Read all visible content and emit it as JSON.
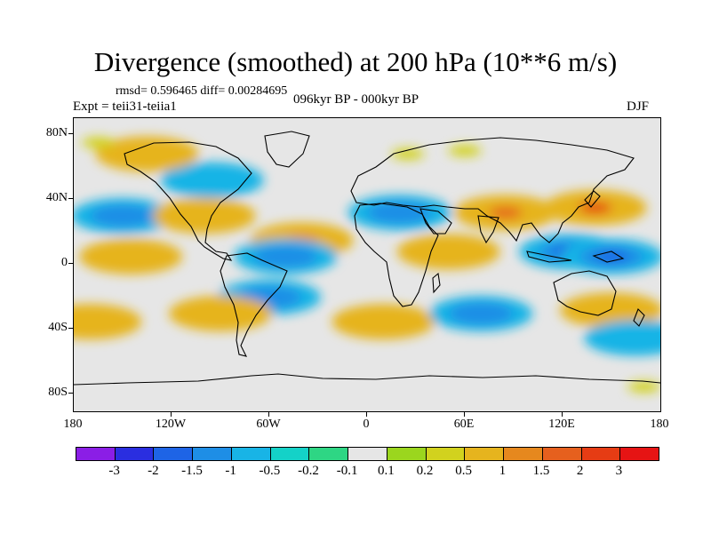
{
  "title": "Divergence (smoothed) at 200 hPa (10**6 m/s)",
  "stats": "rmsd= 0.596465 diff= 0.00284695",
  "experiment": "Expt = teii31-teiia1",
  "period": "096kyr BP - 000kyr BP",
  "season": "DJF",
  "y_axis_labels": [
    "80N",
    "40N",
    "0",
    "40S",
    "80S"
  ],
  "x_axis_labels": [
    "180",
    "120W",
    "60W",
    "0",
    "60E",
    "120E",
    "180"
  ],
  "colorbar": {
    "labels": [
      "-3",
      "-2",
      "-1.5",
      "-1",
      "-0.5",
      "-0.2",
      "-0.1",
      "0.1",
      "0.2",
      "0.5",
      "1",
      "1.5",
      "2",
      "3"
    ],
    "colors": [
      "#8b1ee6",
      "#2a2ee0",
      "#1e64e6",
      "#1e8ee6",
      "#18b4e6",
      "#14d2c8",
      "#2ed684",
      "#e6e6e6",
      "#9bd61e",
      "#d2d21e",
      "#e6b41e",
      "#e6881e",
      "#e6601e",
      "#e63c14",
      "#e61414"
    ]
  },
  "chart_data": {
    "type": "heatmap",
    "x_range": [
      -180,
      180
    ],
    "y_range": [
      -90,
      90
    ],
    "x_ticks": [
      -180,
      -120,
      -60,
      0,
      60,
      120,
      180
    ],
    "y_ticks": [
      80,
      40,
      0,
      -40,
      -80
    ],
    "levels": [
      -3,
      -2,
      -1.5,
      -1,
      -0.5,
      -0.2,
      -0.1,
      0.1,
      0.2,
      0.5,
      1,
      1.5,
      2,
      3
    ],
    "features": [
      {
        "lon": 140,
        "lat": 35,
        "value": 2.5
      },
      {
        "lon": 85,
        "lat": 32,
        "value": 1.8
      },
      {
        "lon": 125,
        "lat": 8,
        "value": -2.2
      },
      {
        "lon": 150,
        "lat": 5,
        "value": -1.5
      },
      {
        "lon": 20,
        "lat": 32,
        "value": -1.0
      },
      {
        "lon": 50,
        "lat": 8,
        "value": 1.0
      },
      {
        "lon": -40,
        "lat": 15,
        "value": 1.2
      },
      {
        "lon": -50,
        "lat": 5,
        "value": -1.2
      },
      {
        "lon": -150,
        "lat": 30,
        "value": -1.0
      },
      {
        "lon": -145,
        "lat": 5,
        "value": 1.0
      },
      {
        "lon": -100,
        "lat": 30,
        "value": 0.8
      },
      {
        "lon": -95,
        "lat": 52,
        "value": -0.8
      },
      {
        "lon": -135,
        "lat": 68,
        "value": 0.8
      },
      {
        "lon": -165,
        "lat": 75,
        "value": 0.5
      },
      {
        "lon": 25,
        "lat": 68,
        "value": 0.5
      },
      {
        "lon": 60,
        "lat": 70,
        "value": 0.5
      },
      {
        "lon": -60,
        "lat": -20,
        "value": -1.0
      },
      {
        "lon": -90,
        "lat": -30,
        "value": 1.0
      },
      {
        "lon": 10,
        "lat": -35,
        "value": 0.8
      },
      {
        "lon": 70,
        "lat": -30,
        "value": -1.0
      },
      {
        "lon": 150,
        "lat": -28,
        "value": 0.8
      },
      {
        "lon": -170,
        "lat": -35,
        "value": 0.8
      },
      {
        "lon": 165,
        "lat": -45,
        "value": -0.8
      },
      {
        "lon": 170,
        "lat": -75,
        "value": 0.5
      }
    ]
  }
}
